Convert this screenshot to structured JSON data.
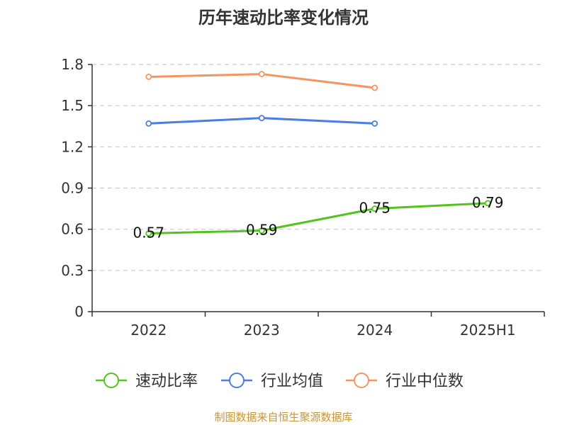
{
  "chart_data": {
    "type": "line",
    "title": "历年速动比率变化情况",
    "categories": [
      "2022",
      "2023",
      "2024",
      "2025H1"
    ],
    "ylim": [
      0,
      1.8
    ],
    "yticks": [
      0,
      0.3,
      0.6,
      0.9,
      1.2,
      1.5,
      1.8
    ],
    "ytick_labels": [
      "0",
      "0.3",
      "0.6",
      "0.9",
      "1.2",
      "1.5",
      "1.8"
    ],
    "grid": true,
    "legend_position": "bottom",
    "series": [
      {
        "name": "速动比率",
        "color": "#52c41a",
        "values": [
          0.57,
          0.59,
          0.75,
          0.79
        ],
        "labels": [
          "0.57",
          "0.59",
          "0.75",
          "0.79"
        ]
      },
      {
        "name": "行业均值",
        "color": "#4a7fe0",
        "values": [
          1.37,
          1.41,
          1.37,
          null
        ]
      },
      {
        "name": "行业中位数",
        "color": "#f59561",
        "values": [
          1.71,
          1.73,
          1.63,
          null
        ]
      }
    ],
    "source": "制图数据来自恒生聚源数据库"
  }
}
